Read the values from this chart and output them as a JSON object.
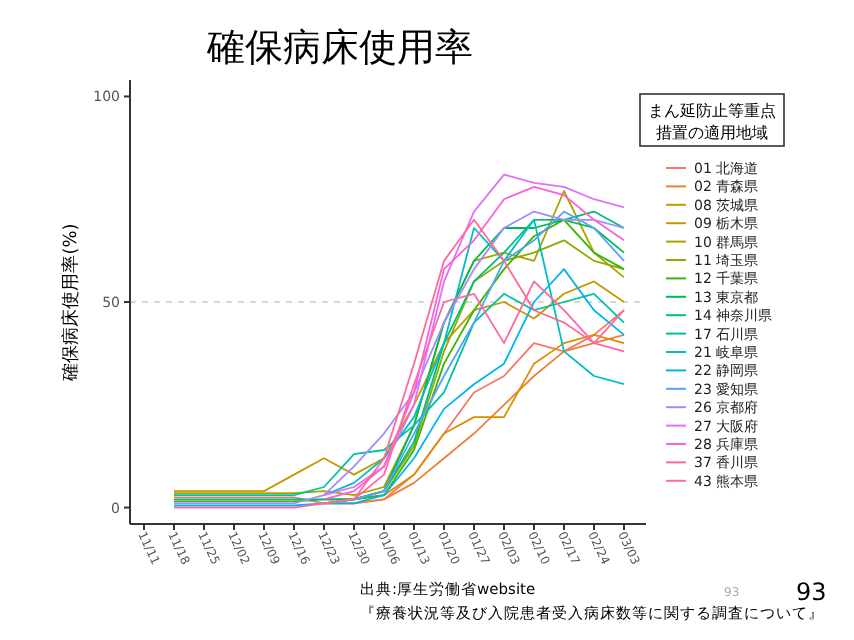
{
  "chart_data": {
    "type": "line",
    "title": "確保病床使用率",
    "ylabel": "確保病床使用率(%)",
    "legend_title": "まん延防止等重点措置の適用地域",
    "legend": "right",
    "ylim": [
      -4,
      104
    ],
    "yticks": [
      0,
      50,
      100
    ],
    "ref_lines": [
      {
        "axis": "y",
        "value": 50,
        "color": "#cccccc",
        "line_style": "dashed"
      }
    ],
    "categories": [
      "11/11",
      "11/18",
      "11/25",
      "12/02",
      "12/09",
      "12/16",
      "12/23",
      "12/30",
      "01/06",
      "01/13",
      "01/20",
      "01/27",
      "02/03",
      "02/10",
      "02/17",
      "02/24",
      "03/03"
    ],
    "annotations": [
      "出典:厚生労働省website",
      "『療養状況等及び入院患者受入病床数等に関する調査について』",
      "93",
      "93"
    ],
    "series": [
      {
        "name": "01 北海道",
        "color": "#F8766D",
        "values": [
          null,
          2.5,
          2.5,
          2.5,
          2.5,
          2.5,
          1,
          1,
          2,
          8,
          18,
          28,
          32,
          40,
          38,
          42,
          48
        ]
      },
      {
        "name": "02 青森県",
        "color": "#EC8239",
        "values": [
          null,
          null,
          null,
          null,
          null,
          null,
          1,
          1,
          2,
          6,
          12,
          18,
          25,
          32,
          38,
          40,
          42
        ]
      },
      {
        "name": "08 茨城県",
        "color": "#DB8E00",
        "values": [
          null,
          null,
          null,
          null,
          null,
          null,
          1,
          2,
          3,
          8,
          18,
          22,
          22,
          35,
          40,
          42,
          40
        ]
      },
      {
        "name": "09 栃木県",
        "color": "#C79800",
        "values": [
          null,
          4,
          4,
          4,
          4,
          8,
          12,
          8,
          12,
          25,
          40,
          48,
          50,
          46,
          52,
          55,
          50
        ]
      },
      {
        "name": "10 群馬県",
        "color": "#AEA200",
        "values": [
          null,
          3.5,
          3.5,
          3.5,
          3.5,
          3.5,
          4,
          3,
          5,
          20,
          45,
          60,
          62,
          60,
          77,
          62,
          56
        ]
      },
      {
        "name": "11 埼玉県",
        "color": "#8FAA00",
        "values": [
          null,
          null,
          null,
          null,
          null,
          null,
          2,
          2,
          4,
          15,
          38,
          55,
          60,
          62,
          65,
          60,
          58
        ]
      },
      {
        "name": "12 千葉県",
        "color": "#39B600",
        "values": [
          null,
          1.5,
          1.5,
          1.5,
          1.5,
          1.5,
          2,
          2,
          3,
          14,
          35,
          48,
          58,
          66,
          70,
          62,
          58
        ]
      },
      {
        "name": "13 東京都",
        "color": "#00BB4E",
        "values": [
          null,
          null,
          null,
          null,
          null,
          null,
          1,
          2,
          4,
          20,
          45,
          60,
          68,
          68,
          70,
          68,
          62
        ]
      },
      {
        "name": "14 神奈川県",
        "color": "#00BF7D",
        "values": [
          null,
          2,
          2,
          2,
          2,
          2,
          2,
          2,
          4,
          16,
          40,
          55,
          62,
          70,
          70,
          72,
          68
        ]
      },
      {
        "name": "17 石川県",
        "color": "#00C1A3",
        "values": [
          null,
          3,
          3,
          3,
          3,
          3,
          5,
          13,
          14,
          20,
          28,
          45,
          52,
          48,
          50,
          52,
          45
        ]
      },
      {
        "name": "21 岐阜県",
        "color": "#00BFC4",
        "values": [
          null,
          null,
          null,
          null,
          null,
          null,
          3,
          6,
          12,
          22,
          40,
          68,
          60,
          70,
          38,
          32,
          30
        ]
      },
      {
        "name": "22 静岡県",
        "color": "#00B5EE",
        "values": [
          null,
          0.5,
          0.5,
          0.5,
          0.5,
          0.5,
          1,
          1,
          3,
          12,
          24,
          30,
          35,
          50,
          58,
          48,
          42
        ]
      },
      {
        "name": "23 愛知県",
        "color": "#55A1FF",
        "values": [
          null,
          null,
          null,
          null,
          null,
          null,
          1,
          2,
          4,
          18,
          32,
          45,
          60,
          65,
          72,
          68,
          60
        ]
      },
      {
        "name": "26 京都府",
        "color": "#A58AFF",
        "values": [
          null,
          1,
          1,
          1,
          1,
          1,
          3,
          10,
          18,
          28,
          45,
          58,
          68,
          72,
          70,
          70,
          68
        ]
      },
      {
        "name": "27 大阪府",
        "color": "#DF70F8",
        "values": [
          null,
          null,
          null,
          null,
          null,
          null,
          3,
          5,
          10,
          25,
          55,
          72,
          81,
          79,
          78,
          75,
          73
        ]
      },
      {
        "name": "28 兵庫県",
        "color": "#FB61D7",
        "values": [
          null,
          null,
          null,
          null,
          null,
          null,
          2,
          4,
          10,
          28,
          58,
          65,
          75,
          78,
          76,
          70,
          65
        ]
      },
      {
        "name": "37 香川県",
        "color": "#FF66A8",
        "values": [
          null,
          0,
          0,
          0,
          0,
          0,
          1,
          2,
          8,
          30,
          50,
          52,
          40,
          55,
          48,
          40,
          38
        ]
      },
      {
        "name": "43 熊本県",
        "color": "#FF6C91",
        "values": [
          null,
          null,
          null,
          null,
          null,
          null,
          1,
          2,
          12,
          35,
          60,
          70,
          60,
          48,
          45,
          40,
          48
        ]
      }
    ]
  }
}
